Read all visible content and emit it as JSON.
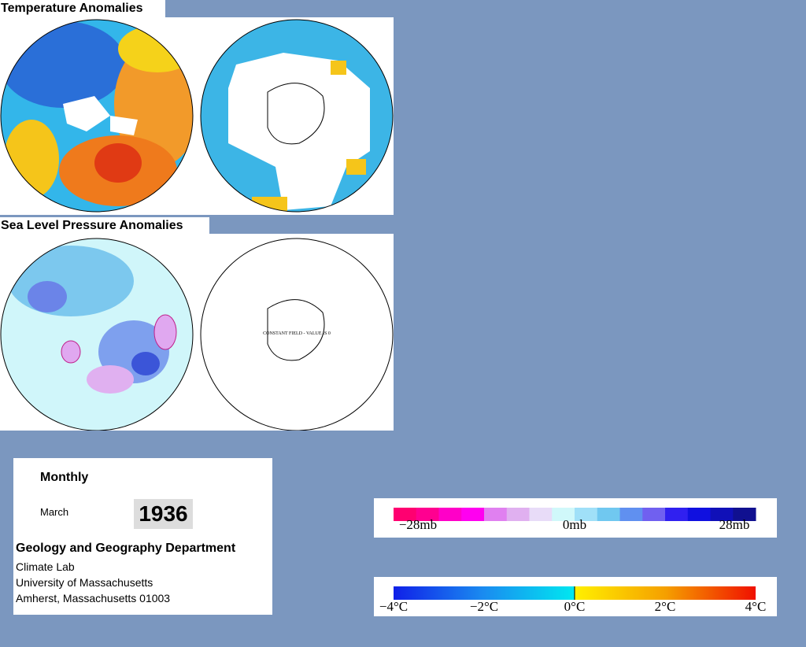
{
  "panels": [
    {
      "title": "Temperature Anomalies"
    },
    {
      "title": "Sea Level Pressure Anomalies"
    }
  ],
  "map_note": "CONSTANT FIELD - VALUE IS 0",
  "info": {
    "period": "Monthly",
    "month": "March",
    "year": 1936,
    "department": "Geology and Geography Department",
    "address": [
      "Climate Lab",
      "University of Massachusetts",
      "Amherst, Massachusetts 01003"
    ]
  },
  "legends": {
    "pressure": {
      "labels": [
        "−28mb",
        "0mb",
        "28mb"
      ]
    },
    "temperature": {
      "labels": [
        "−4°C",
        "−2°C",
        "0°C",
        "2°C",
        "4°C"
      ]
    }
  }
}
